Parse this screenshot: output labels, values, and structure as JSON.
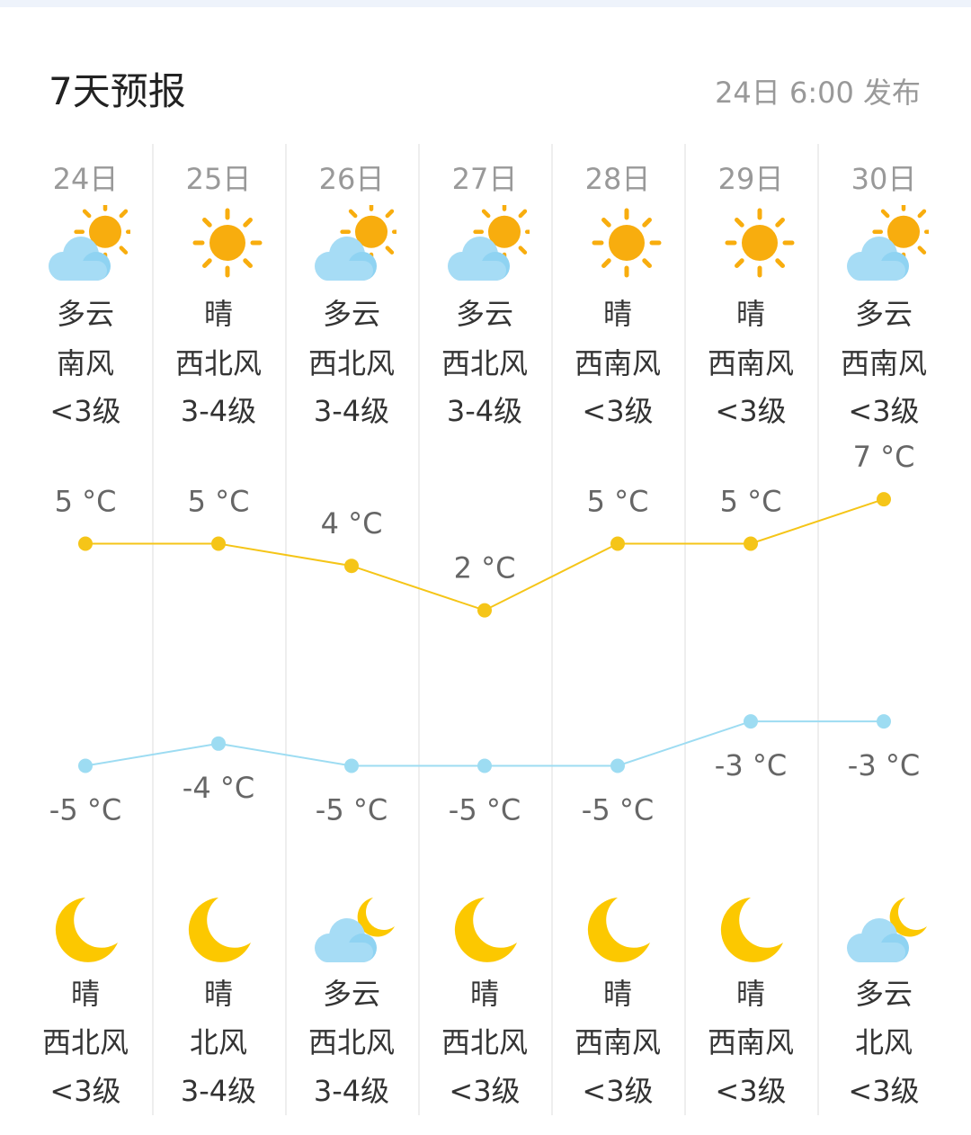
{
  "header": {
    "title": "7天预报",
    "published": "24日 6:00 发布"
  },
  "colors": {
    "high_line": "#f5c518",
    "low_line": "#9ddcf2",
    "sun": "#f8ad0e",
    "cloud": "#a6dcf5",
    "moon": "#fcc800"
  },
  "days": [
    {
      "date": "24日",
      "day": {
        "icon": "partly-cloudy-day-icon",
        "weather": "多云",
        "wind": "南风",
        "level": "<3级"
      },
      "night": {
        "icon": "moon-icon",
        "weather": "晴",
        "wind": "西北风",
        "level": "<3级"
      },
      "high": "5 °C",
      "low": "-5 °C"
    },
    {
      "date": "25日",
      "day": {
        "icon": "sun-icon",
        "weather": "晴",
        "wind": "西北风",
        "level": "3-4级"
      },
      "night": {
        "icon": "moon-icon",
        "weather": "晴",
        "wind": "北风",
        "level": "3-4级"
      },
      "high": "5 °C",
      "low": "-4 °C"
    },
    {
      "date": "26日",
      "day": {
        "icon": "partly-cloudy-day-icon",
        "weather": "多云",
        "wind": "西北风",
        "level": "3-4级"
      },
      "night": {
        "icon": "partly-cloudy-night-icon",
        "weather": "多云",
        "wind": "西北风",
        "level": "3-4级"
      },
      "high": "4 °C",
      "low": "-5 °C"
    },
    {
      "date": "27日",
      "day": {
        "icon": "partly-cloudy-day-icon",
        "weather": "多云",
        "wind": "西北风",
        "level": "3-4级"
      },
      "night": {
        "icon": "moon-icon",
        "weather": "晴",
        "wind": "西北风",
        "level": "<3级"
      },
      "high": "2 °C",
      "low": "-5 °C"
    },
    {
      "date": "28日",
      "day": {
        "icon": "sun-icon",
        "weather": "晴",
        "wind": "西南风",
        "level": "<3级"
      },
      "night": {
        "icon": "moon-icon",
        "weather": "晴",
        "wind": "西南风",
        "level": "<3级"
      },
      "high": "5 °C",
      "low": "-5 °C"
    },
    {
      "date": "29日",
      "day": {
        "icon": "sun-icon",
        "weather": "晴",
        "wind": "西南风",
        "level": "<3级"
      },
      "night": {
        "icon": "moon-icon",
        "weather": "晴",
        "wind": "西南风",
        "level": "<3级"
      },
      "high": "5 °C",
      "low": "-3 °C"
    },
    {
      "date": "30日",
      "day": {
        "icon": "partly-cloudy-day-icon",
        "weather": "多云",
        "wind": "西南风",
        "level": "<3级"
      },
      "night": {
        "icon": "partly-cloudy-night-icon",
        "weather": "多云",
        "wind": "北风",
        "level": "<3级"
      },
      "high": "7 °C",
      "low": "-3 °C"
    }
  ],
  "chart_data": {
    "type": "line",
    "categories": [
      "24日",
      "25日",
      "26日",
      "27日",
      "28日",
      "29日",
      "30日"
    ],
    "series": [
      {
        "values": [
          5,
          5,
          4,
          2,
          5,
          5,
          7
        ]
      },
      {
        "values": [
          -5,
          -4,
          -5,
          -5,
          -5,
          -3,
          -3
        ]
      }
    ],
    "unit": "°C"
  }
}
